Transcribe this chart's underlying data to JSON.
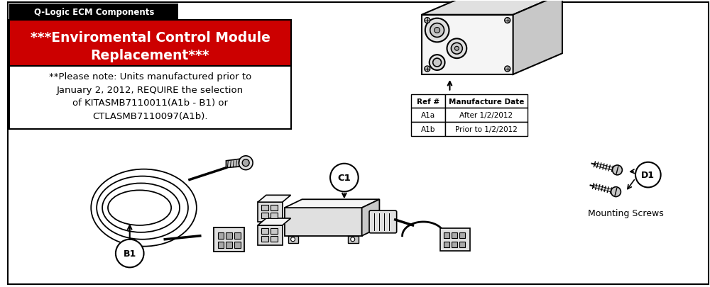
{
  "title": "Q-Logic ECM Components",
  "red_title_line1": "***Enviromental Control Module",
  "red_title_line2": "Replacement***",
  "note_lines": [
    "**Please note: Units manufactured prior to",
    "January 2, 2012, REQUIRE the selection",
    "of KITASMB7110011(A1b - B1) or",
    "CTLASMB7110097(A1b)."
  ],
  "table_header": [
    "Ref #",
    "Manufacture Date"
  ],
  "table_rows": [
    [
      "A1a",
      "After 1/2/2012"
    ],
    [
      "A1b",
      "Prior to 1/2/2012"
    ]
  ],
  "label_b1": "B1",
  "label_c1": "C1",
  "label_d1": "D1",
  "label_mounting": "Mounting Screws",
  "bg_color": "#ffffff",
  "red_color": "#cc0000",
  "black_color": "#000000",
  "white_color": "#ffffff",
  "gray1": "#f5f5f5",
  "gray2": "#e0e0e0",
  "gray3": "#c8c8c8",
  "gray4": "#a8a8a8"
}
